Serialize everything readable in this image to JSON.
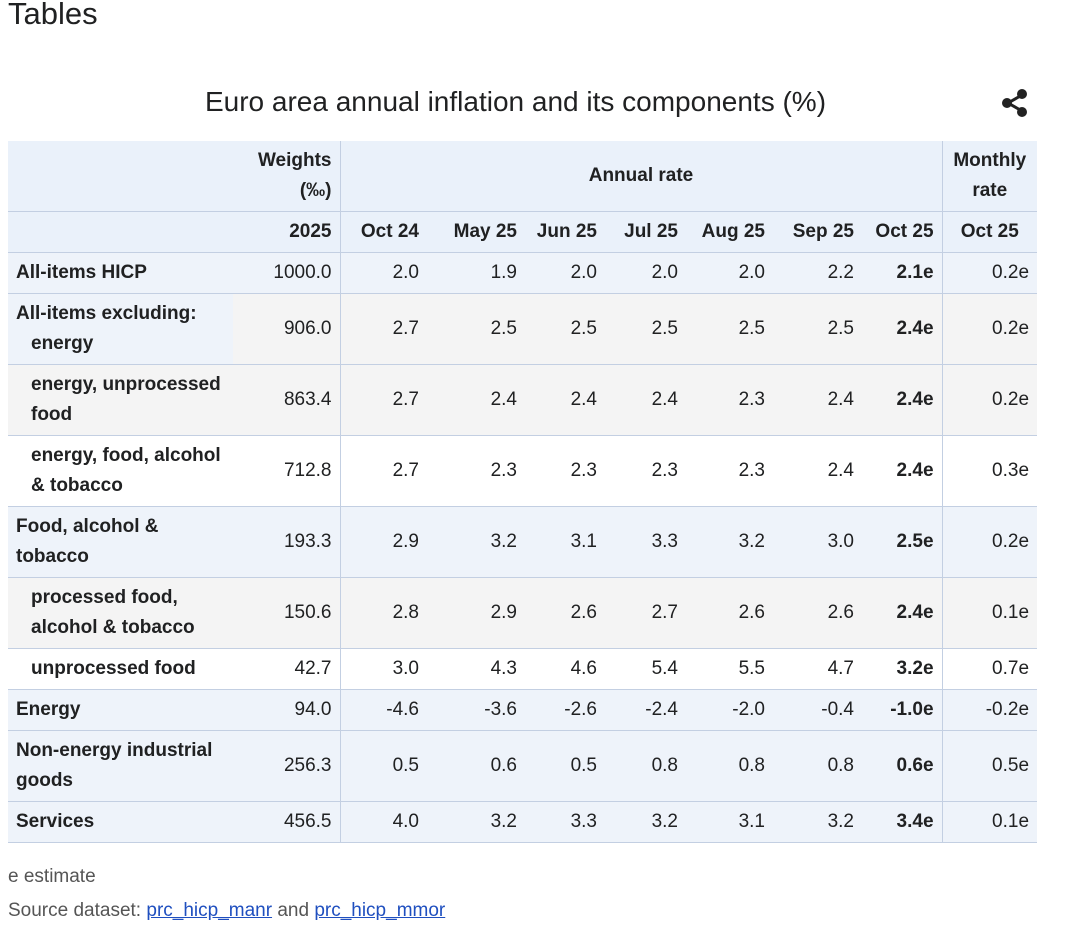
{
  "header": {
    "title": "Tables"
  },
  "table": {
    "title": "Euro area annual inflation and its components (%)",
    "group_headers": [
      "Weights (‰)",
      "Annual rate",
      "Monthly rate"
    ],
    "columns": [
      "2025",
      "Oct 24",
      "May 25",
      "Jun 25",
      "Jul 25",
      "Aug 25",
      "Sep 25",
      "Oct 25",
      "Oct 25"
    ],
    "rows": [
      {
        "label": "All-items HICP",
        "indent": false,
        "values": [
          "1000.0",
          "2.0",
          "1.9",
          "2.0",
          "2.0",
          "2.0",
          "2.2",
          "2.1e",
          "0.2e"
        ]
      },
      {
        "label": "All-items excluding: energy",
        "indent": false,
        "values": [
          "906.0",
          "2.7",
          "2.5",
          "2.5",
          "2.5",
          "2.5",
          "2.5",
          "2.4e",
          "0.2e"
        ]
      },
      {
        "label": "energy, unprocessed food",
        "indent": true,
        "values": [
          "863.4",
          "2.7",
          "2.4",
          "2.4",
          "2.4",
          "2.3",
          "2.4",
          "2.4e",
          "0.2e"
        ]
      },
      {
        "label": "energy, food, alcohol & tobacco",
        "indent": true,
        "values": [
          "712.8",
          "2.7",
          "2.3",
          "2.3",
          "2.3",
          "2.3",
          "2.4",
          "2.4e",
          "0.3e"
        ]
      },
      {
        "label": "Food, alcohol & tobacco",
        "indent": false,
        "values": [
          "193.3",
          "2.9",
          "3.2",
          "3.1",
          "3.3",
          "3.2",
          "3.0",
          "2.5e",
          "0.2e"
        ]
      },
      {
        "label": "processed food, alcohol & tobacco",
        "indent": true,
        "values": [
          "150.6",
          "2.8",
          "2.9",
          "2.6",
          "2.7",
          "2.6",
          "2.6",
          "2.4e",
          "0.1e"
        ]
      },
      {
        "label": "unprocessed food",
        "indent": true,
        "values": [
          "42.7",
          "3.0",
          "4.3",
          "4.6",
          "5.4",
          "5.5",
          "4.7",
          "3.2e",
          "0.7e"
        ]
      },
      {
        "label": "Energy",
        "indent": false,
        "values": [
          "94.0",
          "-4.6",
          "-3.6",
          "-2.6",
          "-2.4",
          "-2.0",
          "-0.4",
          "-1.0e",
          "-0.2e"
        ]
      },
      {
        "label": "Non-energy industrial goods",
        "indent": false,
        "values": [
          "256.3",
          "0.5",
          "0.6",
          "0.5",
          "0.8",
          "0.8",
          "0.8",
          "0.6e",
          "0.5e"
        ]
      },
      {
        "label": "Services",
        "indent": false,
        "values": [
          "456.5",
          "4.0",
          "3.2",
          "3.3",
          "3.2",
          "3.1",
          "3.2",
          "3.4e",
          "0.1e"
        ]
      }
    ]
  },
  "footer": {
    "note": "e estimate",
    "source_label": "Source dataset:",
    "links": [
      "prc_hicp_manr",
      "prc_hicp_mmor"
    ],
    "conjunction": "and"
  }
}
